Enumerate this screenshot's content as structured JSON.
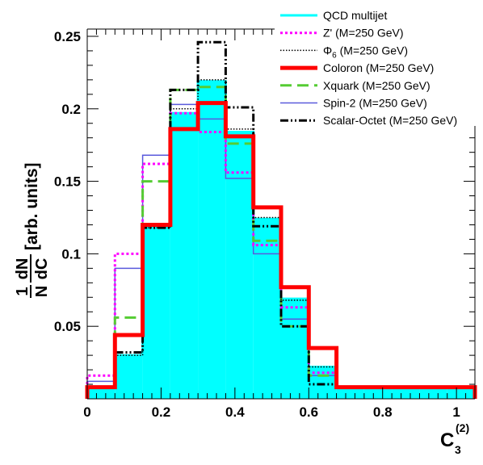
{
  "chart_data": {
    "type": "histogram",
    "xlabel_main": "C",
    "xlabel_sub": "3",
    "xlabel_sup": "(2)",
    "ylabel_frac_num": "1",
    "ylabel_frac_den": "N",
    "ylabel_d_num": "dN",
    "ylabel_d_den": "dC",
    "ylabel_units": "[arb. units]",
    "xlim": [
      0,
      1.05
    ],
    "ylim": [
      0,
      0.255
    ],
    "x_ticks": [
      0,
      0.2,
      0.4,
      0.6,
      0.8,
      1
    ],
    "x_tick_labels": [
      "0",
      "0.2",
      "0.4",
      "0.6",
      "0.8",
      "1"
    ],
    "y_ticks": [
      0.05,
      0.1,
      0.15,
      0.2,
      0.25
    ],
    "y_tick_labels": [
      "0.05",
      "0.1",
      "0.15",
      "0.2",
      "0.25"
    ],
    "bin_edges": [
      0,
      0.075,
      0.15,
      0.225,
      0.3,
      0.375,
      0.45,
      0.525,
      0.6,
      0.675,
      0.75,
      0.825,
      0.9,
      0.975,
      1.05
    ],
    "legend_position": "top-right",
    "series": [
      {
        "name": "QCD multijet",
        "color": "#00ffff",
        "style": "filled",
        "width": 3,
        "values": [
          0.008,
          0.03,
          0.118,
          0.197,
          0.219,
          0.184,
          0.124,
          0.069,
          0.022,
          0.008,
          0.008,
          0.008,
          0.008,
          0.008
        ]
      },
      {
        "name": "Z' (M=250 GeV)",
        "color": "#ff00ff",
        "style": "dotted",
        "width": 3,
        "values": [
          0.016,
          0.1,
          0.162,
          0.197,
          0.184,
          0.156,
          0.106,
          0.063,
          0.018,
          0.008,
          0.008,
          0.008,
          0.008,
          0.008
        ]
      },
      {
        "name": "Φ6 (M=250 GeV)",
        "name_main": "Φ",
        "name_sub": "6",
        "name_rest": " (M=250 GeV)",
        "color": "#000000",
        "style": "finedot",
        "width": 1.5,
        "values": [
          0.008,
          0.03,
          0.118,
          0.2,
          0.22,
          0.186,
          0.125,
          0.068,
          0.022,
          0.008,
          0.008,
          0.008,
          0.008,
          0.008
        ]
      },
      {
        "name": "Coloron (M=250 GeV)",
        "color": "#ff0000",
        "style": "solid",
        "width": 5,
        "values": [
          0.008,
          0.044,
          0.12,
          0.186,
          0.204,
          0.181,
          0.132,
          0.077,
          0.035,
          0.008,
          0.008,
          0.008,
          0.008,
          0.008
        ]
      },
      {
        "name": "Xquark (M=250 GeV)",
        "color": "#55cc33",
        "style": "dashed",
        "width": 3,
        "values": [
          0.008,
          0.056,
          0.15,
          0.213,
          0.215,
          0.176,
          0.109,
          0.05,
          0.016,
          0.008,
          0.008,
          0.008,
          0.008,
          0.008
        ]
      },
      {
        "name": "Spin-2 (M=250 GeV)",
        "color": "#5a5adc",
        "style": "solid",
        "width": 1.5,
        "values": [
          0.012,
          0.09,
          0.168,
          0.203,
          0.193,
          0.152,
          0.1,
          0.055,
          0.016,
          0.008,
          0.008,
          0.008,
          0.008,
          0.008
        ]
      },
      {
        "name": "Scalar-Octet (M=250 GeV)",
        "color": "#000000",
        "style": "dashdot",
        "width": 3,
        "values": [
          0.008,
          0.032,
          0.118,
          0.213,
          0.246,
          0.201,
          0.119,
          0.05,
          0.01,
          0.008,
          0.008,
          0.008,
          0.008,
          0.008
        ]
      }
    ]
  }
}
